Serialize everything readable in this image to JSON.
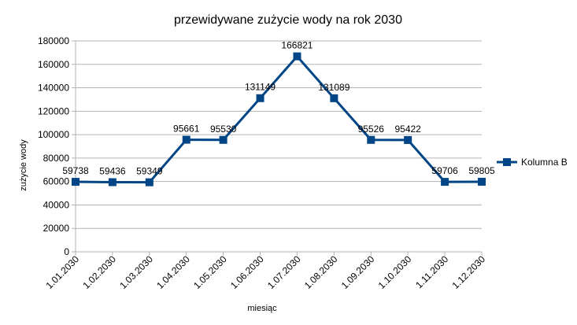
{
  "chart_data": {
    "type": "line",
    "title": "przewidywane zużycie wody na rok 2030",
    "xlabel": "miesiąc",
    "ylabel": "zużycie wody",
    "categories": [
      "1.01.2030",
      "1.02.2030",
      "1.03.2030",
      "1.04.2030",
      "1.05.2030",
      "1.06.2030",
      "1.07.2030",
      "1.08.2030",
      "1.09.2030",
      "1.10.2030",
      "1.11.2030",
      "1.12.2030"
    ],
    "series": [
      {
        "name": "Kolumna B",
        "color": "#004586",
        "marker": "square",
        "values": [
          59738,
          59436,
          59349,
          95661,
          95530,
          131149,
          166821,
          131089,
          95526,
          95422,
          59706,
          59805
        ]
      }
    ],
    "ylim": [
      0,
      180000
    ],
    "yticks": [
      0,
      20000,
      40000,
      60000,
      80000,
      100000,
      120000,
      140000,
      160000,
      180000
    ],
    "grid": true,
    "legend_position": "right",
    "data_labels": true
  }
}
